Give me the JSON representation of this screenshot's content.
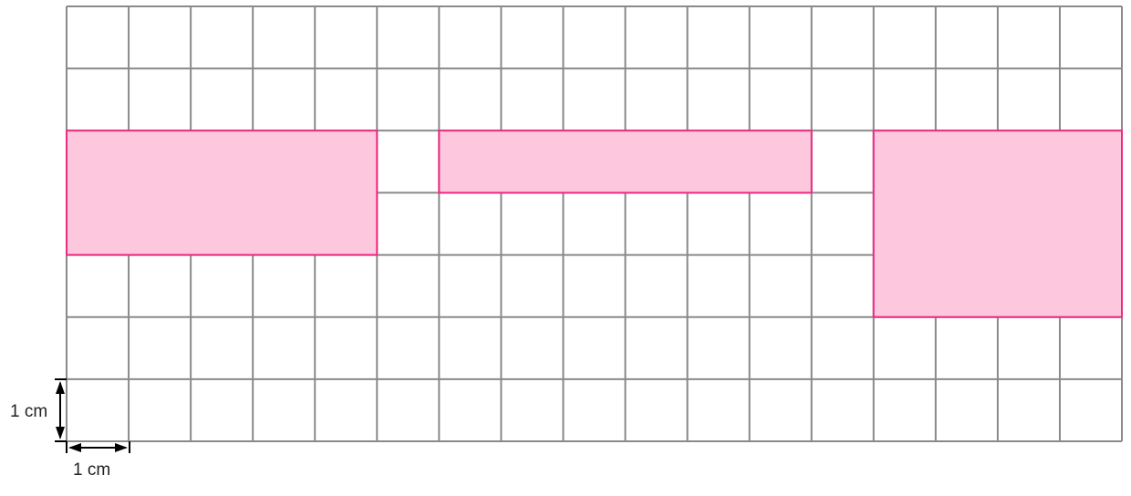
{
  "grid": {
    "columns": 17,
    "rows": 7,
    "unit": "1 cm",
    "line_color": "#8a8a8a"
  },
  "rectangles": [
    {
      "name": "rectangle-a",
      "col": 0,
      "row": 2,
      "width_cm": 5,
      "height_cm": 2
    },
    {
      "name": "rectangle-b",
      "col": 6,
      "row": 2,
      "width_cm": 6,
      "height_cm": 1
    },
    {
      "name": "rectangle-c",
      "col": 13,
      "row": 2,
      "width_cm": 4,
      "height_cm": 3
    }
  ],
  "colors": {
    "fill": "#fdc8de",
    "stroke": "#ee2a85"
  },
  "scale": {
    "vertical_label": "1 cm",
    "horizontal_label": "1 cm"
  }
}
